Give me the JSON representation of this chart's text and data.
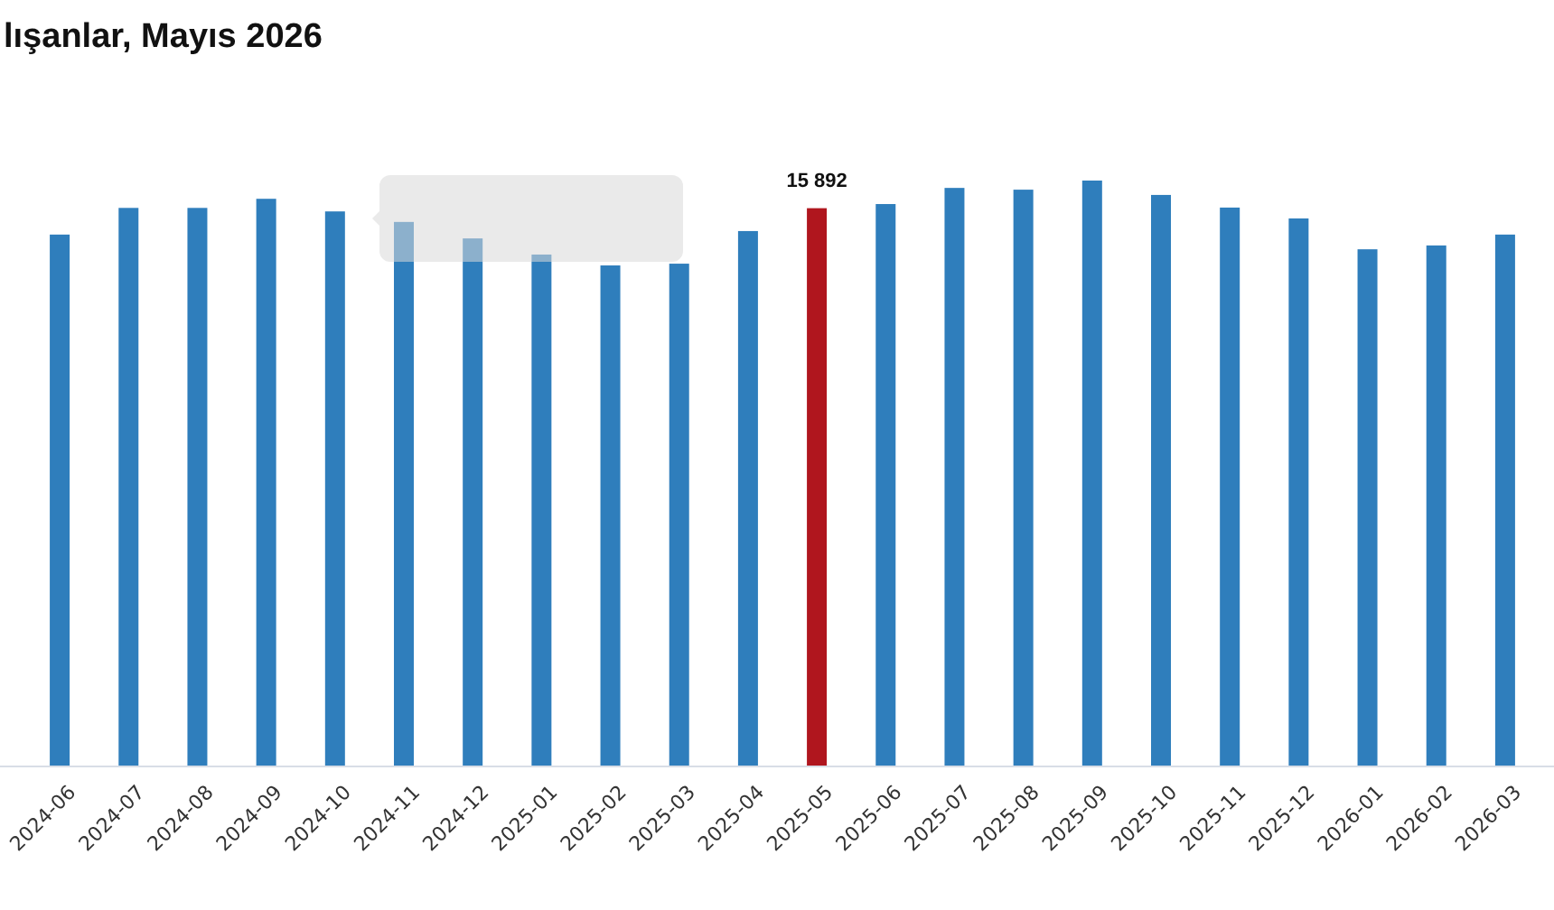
{
  "chart_data": {
    "type": "bar",
    "title": "lışanlar, Mayıs 2026",
    "categories": [
      "2024-06",
      "2024-07",
      "2024-08",
      "2024-09",
      "2024-10",
      "2024-11",
      "2024-12",
      "2025-01",
      "2025-02",
      "2025-03",
      "2025-04",
      "2025-05",
      "2025-06",
      "2025-07",
      "2025-08",
      "2025-09",
      "2025-10",
      "2025-11",
      "2025-12",
      "2026-01",
      "2026-02",
      "2026-03"
    ],
    "values": [
      15140,
      15900,
      15900,
      16160,
      15800,
      15500,
      15030,
      14570,
      14260,
      14310,
      15240,
      15892,
      16010,
      16470,
      16420,
      16680,
      16270,
      15910,
      15600,
      14720,
      14830,
      15140
    ],
    "colors": [
      "#2f7ebc",
      "#2f7ebc",
      "#2f7ebc",
      "#2f7ebc",
      "#2f7ebc",
      "#2f7ebc",
      "#2f7ebc",
      "#2f7ebc",
      "#2f7ebc",
      "#2f7ebc",
      "#2f7ebc",
      "#b0161e",
      "#2f7ebc",
      "#2f7ebc",
      "#2f7ebc",
      "#2f7ebc",
      "#2f7ebc",
      "#2f7ebc",
      "#2f7ebc",
      "#2f7ebc",
      "#2f7ebc",
      "#2f7ebc"
    ],
    "value_labels": [
      null,
      null,
      null,
      null,
      null,
      null,
      null,
      null,
      null,
      null,
      null,
      "15 892",
      null,
      null,
      null,
      null,
      null,
      null,
      null,
      null,
      null,
      null
    ],
    "grid": false
  }
}
